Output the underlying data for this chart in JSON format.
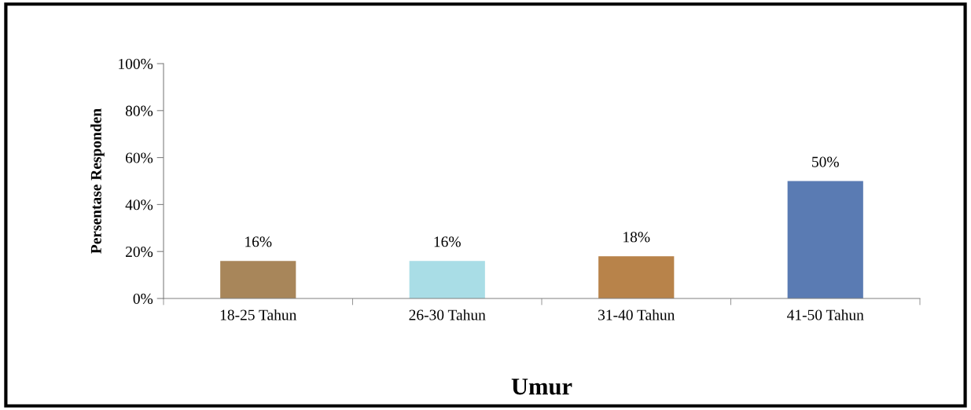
{
  "chart_data": {
    "type": "bar",
    "xlabel": "Umur",
    "ylabel": "Persentase Responden",
    "categories": [
      "18-25 Tahun",
      "26-30 Tahun",
      "31-40 Tahun",
      "41-50 Tahun"
    ],
    "values": [
      16,
      16,
      18,
      50
    ],
    "colors": [
      "#a8865a",
      "#a9dde6",
      "#b8834a",
      "#5a7bb3"
    ],
    "ylim": [
      0,
      100
    ],
    "yticks": [
      {
        "value": 0,
        "label": "0%"
      },
      {
        "value": 20,
        "label": "20%"
      },
      {
        "value": 40,
        "label": "40%"
      },
      {
        "value": 60,
        "label": "60%"
      },
      {
        "value": 80,
        "label": "80%"
      },
      {
        "value": 100,
        "label": "100%"
      }
    ],
    "value_labels": [
      "16%",
      "16%",
      "18%",
      "50%"
    ],
    "grid": false,
    "legend": false
  }
}
